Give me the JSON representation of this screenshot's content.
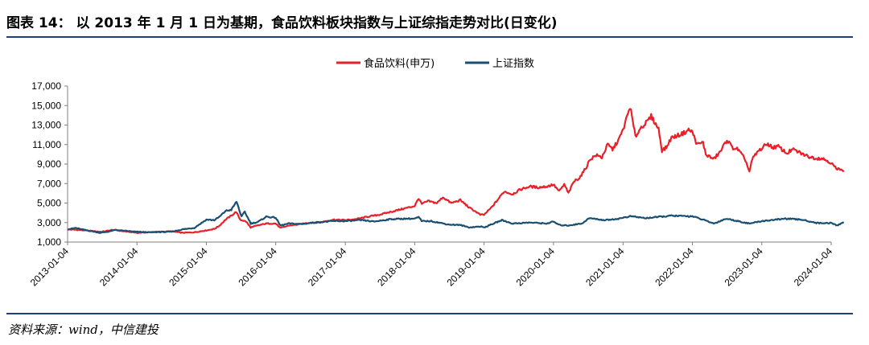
{
  "header": {
    "title": "图表 14：   以 2013 年 1 月 1 日为基期，食品饮料板块指数与上证综指走势对比(日变化)"
  },
  "footer": {
    "source": "资料来源：wind，中信建投"
  },
  "chart_data": {
    "type": "line",
    "title": "",
    "xlabel": "",
    "ylabel": "",
    "ylim": [
      1000,
      17000
    ],
    "yticks": [
      "1,000",
      "3,000",
      "5,000",
      "7,000",
      "9,000",
      "11,000",
      "13,000",
      "15,000",
      "17,000"
    ],
    "xticks": [
      "2013-01-04",
      "2014-01-04",
      "2015-01-04",
      "2016-01-04",
      "2017-01-04",
      "2018-01-04",
      "2019-01-04",
      "2020-01-04",
      "2021-01-04",
      "2022-01-04",
      "2023-01-04",
      "2024-01-04"
    ],
    "grid": false,
    "legend_position": "top-center",
    "series": [
      {
        "name": "食品饮料(申万)",
        "color": "#e8202a",
        "points": [
          [
            "2013-01-04",
            2300
          ],
          [
            "2013-03-01",
            2250
          ],
          [
            "2013-05-01",
            2150
          ],
          [
            "2013-07-01",
            2050
          ],
          [
            "2013-09-01",
            2250
          ],
          [
            "2013-11-01",
            2100
          ],
          [
            "2014-01-04",
            1950
          ],
          [
            "2014-03-01",
            2000
          ],
          [
            "2014-05-01",
            2050
          ],
          [
            "2014-07-01",
            2100
          ],
          [
            "2014-09-01",
            1950
          ],
          [
            "2014-11-01",
            2000
          ],
          [
            "2015-01-04",
            2200
          ],
          [
            "2015-02-15",
            2350
          ],
          [
            "2015-03-15",
            2700
          ],
          [
            "2015-04-15",
            3300
          ],
          [
            "2015-05-15",
            3700
          ],
          [
            "2015-06-10",
            4100
          ],
          [
            "2015-07-01",
            3300
          ],
          [
            "2015-08-01",
            3100
          ],
          [
            "2015-08-25",
            2500
          ],
          [
            "2015-10-01",
            2700
          ],
          [
            "2015-11-15",
            2900
          ],
          [
            "2016-01-04",
            2900
          ],
          [
            "2016-01-28",
            2450
          ],
          [
            "2016-03-15",
            2700
          ],
          [
            "2016-05-01",
            2800
          ],
          [
            "2016-07-01",
            3000
          ],
          [
            "2016-09-01",
            3050
          ],
          [
            "2016-11-01",
            3300
          ],
          [
            "2017-01-04",
            3250
          ],
          [
            "2017-03-01",
            3350
          ],
          [
            "2017-05-01",
            3600
          ],
          [
            "2017-07-01",
            3800
          ],
          [
            "2017-09-01",
            4100
          ],
          [
            "2017-11-01",
            4400
          ],
          [
            "2018-01-04",
            4700
          ],
          [
            "2018-01-25",
            5500
          ],
          [
            "2018-02-10",
            4900
          ],
          [
            "2018-03-15",
            5200
          ],
          [
            "2018-05-01",
            5000
          ],
          [
            "2018-06-01",
            5600
          ],
          [
            "2018-07-15",
            5000
          ],
          [
            "2018-09-01",
            5300
          ],
          [
            "2018-10-20",
            4500
          ],
          [
            "2018-11-15",
            4200
          ],
          [
            "2018-12-15",
            3800
          ],
          [
            "2019-01-04",
            3800
          ],
          [
            "2019-02-15",
            4600
          ],
          [
            "2019-03-15",
            5300
          ],
          [
            "2019-04-20",
            6200
          ],
          [
            "2019-06-01",
            5900
          ],
          [
            "2019-07-15",
            6400
          ],
          [
            "2019-09-01",
            6700
          ],
          [
            "2019-10-15",
            6600
          ],
          [
            "2019-12-01",
            6700
          ],
          [
            "2020-01-04",
            6900
          ],
          [
            "2020-02-03",
            6200
          ],
          [
            "2020-03-01",
            6900
          ],
          [
            "2020-03-23",
            6000
          ],
          [
            "2020-04-20",
            7200
          ],
          [
            "2020-05-20",
            7600
          ],
          [
            "2020-06-20",
            8500
          ],
          [
            "2020-07-15",
            9500
          ],
          [
            "2020-08-15",
            9900
          ],
          [
            "2020-09-15",
            9700
          ],
          [
            "2020-10-15",
            11000
          ],
          [
            "2020-11-10",
            10500
          ],
          [
            "2020-12-15",
            11600
          ],
          [
            "2021-01-04",
            12500
          ],
          [
            "2021-02-10",
            14900
          ],
          [
            "2021-03-10",
            11800
          ],
          [
            "2021-04-10",
            12800
          ],
          [
            "2021-05-10",
            13300
          ],
          [
            "2021-06-01",
            13900
          ],
          [
            "2021-07-10",
            12600
          ],
          [
            "2021-07-28",
            10400
          ],
          [
            "2021-08-20",
            10700
          ],
          [
            "2021-09-15",
            11700
          ],
          [
            "2021-10-15",
            11900
          ],
          [
            "2021-11-20",
            12200
          ],
          [
            "2021-12-15",
            12500
          ],
          [
            "2022-01-04",
            12300
          ],
          [
            "2022-01-28",
            11000
          ],
          [
            "2022-03-01",
            11200
          ],
          [
            "2022-03-15",
            10000
          ],
          [
            "2022-04-26",
            9500
          ],
          [
            "2022-06-01",
            10300
          ],
          [
            "2022-07-05",
            11500
          ],
          [
            "2022-08-01",
            10700
          ],
          [
            "2022-09-01",
            10500
          ],
          [
            "2022-10-10",
            9400
          ],
          [
            "2022-10-31",
            8200
          ],
          [
            "2022-11-15",
            9500
          ],
          [
            "2022-12-15",
            10300
          ],
          [
            "2023-01-04",
            10600
          ],
          [
            "2023-02-01",
            11100
          ],
          [
            "2023-03-01",
            10700
          ],
          [
            "2023-04-01",
            10800
          ],
          [
            "2023-05-15",
            10100
          ],
          [
            "2023-06-15",
            10500
          ],
          [
            "2023-07-30",
            10100
          ],
          [
            "2023-09-01",
            9800
          ],
          [
            "2023-10-15",
            9600
          ],
          [
            "2023-11-15",
            9600
          ],
          [
            "2023-12-20",
            9300
          ],
          [
            "2024-01-04",
            9100
          ],
          [
            "2024-02-05",
            8400
          ],
          [
            "2024-02-25",
            8600
          ],
          [
            "2024-03-10",
            8200
          ]
        ]
      },
      {
        "name": "上证指数",
        "color": "#1a4f72",
        "points": [
          [
            "2013-01-04",
            2300
          ],
          [
            "2013-02-15",
            2450
          ],
          [
            "2013-04-01",
            2250
          ],
          [
            "2013-06-25",
            1950
          ],
          [
            "2013-08-01",
            2050
          ],
          [
            "2013-09-15",
            2250
          ],
          [
            "2013-11-01",
            2150
          ],
          [
            "2014-01-04",
            2050
          ],
          [
            "2014-03-10",
            2000
          ],
          [
            "2014-05-01",
            2030
          ],
          [
            "2014-07-01",
            2050
          ],
          [
            "2014-09-01",
            2300
          ],
          [
            "2014-11-01",
            2450
          ],
          [
            "2015-01-04",
            3300
          ],
          [
            "2015-02-15",
            3250
          ],
          [
            "2015-03-15",
            3600
          ],
          [
            "2015-04-15",
            4200
          ],
          [
            "2015-05-15",
            4300
          ],
          [
            "2015-06-12",
            5150
          ],
          [
            "2015-07-08",
            3600
          ],
          [
            "2015-07-25",
            4100
          ],
          [
            "2015-08-26",
            2900
          ],
          [
            "2015-10-01",
            3050
          ],
          [
            "2015-11-15",
            3600
          ],
          [
            "2016-01-04",
            3500
          ],
          [
            "2016-01-28",
            2700
          ],
          [
            "2016-03-15",
            2900
          ],
          [
            "2016-05-15",
            2850
          ],
          [
            "2016-08-01",
            3000
          ],
          [
            "2016-11-01",
            3150
          ],
          [
            "2017-01-04",
            3150
          ],
          [
            "2017-04-01",
            3250
          ],
          [
            "2017-06-01",
            3100
          ],
          [
            "2017-09-01",
            3350
          ],
          [
            "2017-11-15",
            3400
          ],
          [
            "2018-01-04",
            3400
          ],
          [
            "2018-01-25",
            3550
          ],
          [
            "2018-02-10",
            3150
          ],
          [
            "2018-04-01",
            3150
          ],
          [
            "2018-07-01",
            2800
          ],
          [
            "2018-09-01",
            2750
          ],
          [
            "2018-10-18",
            2500
          ],
          [
            "2018-12-15",
            2600
          ],
          [
            "2019-01-04",
            2500
          ],
          [
            "2019-04-08",
            3250
          ],
          [
            "2019-06-01",
            2900
          ],
          [
            "2019-09-01",
            3000
          ],
          [
            "2019-12-01",
            2900
          ],
          [
            "2020-01-04",
            3100
          ],
          [
            "2020-02-03",
            2750
          ],
          [
            "2020-03-20",
            2700
          ],
          [
            "2020-06-01",
            2900
          ],
          [
            "2020-07-10",
            3450
          ],
          [
            "2020-10-01",
            3250
          ],
          [
            "2020-12-15",
            3400
          ],
          [
            "2021-01-04",
            3500
          ],
          [
            "2021-02-15",
            3650
          ],
          [
            "2021-05-01",
            3450
          ],
          [
            "2021-09-15",
            3700
          ],
          [
            "2021-12-15",
            3650
          ],
          [
            "2022-01-04",
            3650
          ],
          [
            "2022-03-15",
            3200
          ],
          [
            "2022-04-26",
            2900
          ],
          [
            "2022-07-01",
            3400
          ],
          [
            "2022-10-31",
            2900
          ],
          [
            "2023-01-04",
            3150
          ],
          [
            "2023-05-09",
            3400
          ],
          [
            "2023-08-01",
            3300
          ],
          [
            "2023-10-23",
            2950
          ],
          [
            "2023-12-20",
            2950
          ],
          [
            "2024-01-04",
            2950
          ],
          [
            "2024-02-05",
            2700
          ],
          [
            "2024-03-10",
            3050
          ]
        ]
      }
    ]
  }
}
